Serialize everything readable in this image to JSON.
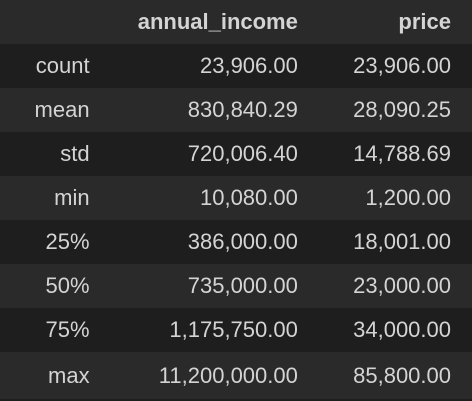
{
  "table": {
    "headers": [
      "",
      "annual_income",
      "price"
    ],
    "rows": [
      {
        "index": "count",
        "annual_income": "23,906.00",
        "price": "23,906.00"
      },
      {
        "index": "mean",
        "annual_income": "830,840.29",
        "price": "28,090.25"
      },
      {
        "index": "std",
        "annual_income": "720,006.40",
        "price": "14,788.69"
      },
      {
        "index": "min",
        "annual_income": "10,080.00",
        "price": "1,200.00"
      },
      {
        "index": "25%",
        "annual_income": "386,000.00",
        "price": "18,001.00"
      },
      {
        "index": "50%",
        "annual_income": "735,000.00",
        "price": "23,000.00"
      },
      {
        "index": "75%",
        "annual_income": "1,175,750.00",
        "price": "34,000.00"
      },
      {
        "index": "max",
        "annual_income": "11,200,000.00",
        "price": "85,800.00"
      }
    ]
  },
  "colors": {
    "background": "#1e1e1e",
    "stripe": "#2a2a2a",
    "text": "#d4d4d4"
  }
}
